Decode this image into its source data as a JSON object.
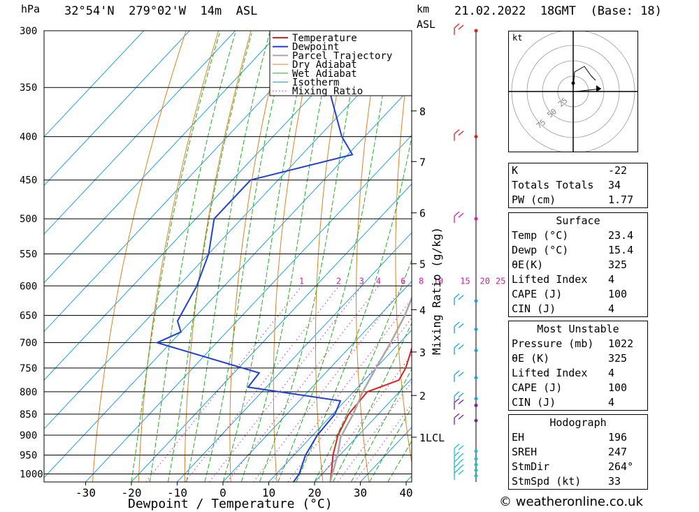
{
  "header": {
    "unit_hpa": "hPa",
    "location": "32°54'N  279°02'W  14m  ASL",
    "unit_km": "km",
    "unit_asl": "ASL",
    "datetime": "21.02.2022  18GMT  (Base: 18)"
  },
  "chart_data": {
    "type": "skew-t",
    "xlabel": "Dewpoint / Temperature (°C)",
    "ylabel_right": "Mixing Ratio (g/kg)",
    "x_ticks": [
      -30,
      -20,
      -10,
      0,
      10,
      20,
      30,
      40
    ],
    "pressure_ticks": [
      300,
      350,
      400,
      450,
      500,
      550,
      600,
      650,
      700,
      750,
      800,
      850,
      900,
      950,
      1000
    ],
    "km_ticks": [
      {
        "label": "8",
        "p": 373
      },
      {
        "label": "7",
        "p": 428
      },
      {
        "label": "6",
        "p": 492
      },
      {
        "label": "5",
        "p": 565
      },
      {
        "label": "4",
        "p": 640
      },
      {
        "label": "3",
        "p": 718
      },
      {
        "label": "2",
        "p": 808
      },
      {
        "label": "1LCL",
        "p": 905
      }
    ],
    "mixing_ratio_labels": [
      "1",
      "2",
      "3",
      "4",
      "6",
      "8",
      "10",
      "15",
      "20",
      "25"
    ],
    "legend": [
      "Temperature",
      "Dewpoint",
      "Parcel Trajectory",
      "Dry Adiabat",
      "Wet Adiabat",
      "Isotherm",
      "Mixing Ratio"
    ],
    "series": [
      {
        "name": "Temperature",
        "color": "#e02020",
        "points": [
          [
            1022,
            23.4
          ],
          [
            1000,
            22
          ],
          [
            950,
            18.5
          ],
          [
            900,
            15.5
          ],
          [
            850,
            13.5
          ],
          [
            800,
            13
          ],
          [
            775,
            17.5
          ],
          [
            750,
            16.5
          ],
          [
            700,
            13
          ],
          [
            660,
            13
          ],
          [
            600,
            10
          ],
          [
            550,
            6
          ],
          [
            500,
            1
          ],
          [
            450,
            -6
          ],
          [
            400,
            -15
          ],
          [
            350,
            -26
          ],
          [
            300,
            -37
          ]
        ]
      },
      {
        "name": "Dewpoint",
        "color": "#2040d0",
        "points": [
          [
            1022,
            15.4
          ],
          [
            1000,
            15
          ],
          [
            950,
            12.5
          ],
          [
            900,
            11
          ],
          [
            850,
            10.5
          ],
          [
            820,
            9
          ],
          [
            790,
            -14
          ],
          [
            760,
            -14.5
          ],
          [
            700,
            -43
          ],
          [
            680,
            -40
          ],
          [
            660,
            -43
          ],
          [
            600,
            -46
          ],
          [
            550,
            -50
          ],
          [
            500,
            -56
          ],
          [
            450,
            -56
          ],
          [
            420,
            -39
          ],
          [
            400,
            -45
          ],
          [
            350,
            -58
          ],
          [
            300,
            -58
          ]
        ]
      },
      {
        "name": "Parcel Trajectory",
        "color": "#a8a8a8",
        "points": [
          [
            1022,
            23.4
          ],
          [
            950,
            19.5
          ],
          [
            905,
            16.5
          ],
          [
            850,
            14.5
          ],
          [
            800,
            12
          ],
          [
            750,
            10
          ],
          [
            700,
            8
          ],
          [
            650,
            5.5
          ],
          [
            600,
            2
          ],
          [
            550,
            -3
          ],
          [
            500,
            -8.5
          ],
          [
            450,
            -16
          ],
          [
            400,
            -24
          ],
          [
            350,
            -34
          ],
          [
            310,
            -45
          ]
        ]
      }
    ],
    "wind_barbs_p": [
      300,
      400,
      500,
      625,
      675,
      715,
      770,
      815,
      830,
      865,
      940,
      960,
      975,
      990,
      1005
    ]
  },
  "hodograph": {
    "unit": "kt",
    "ring_labels": [
      "25",
      "50",
      "75"
    ]
  },
  "indices": {
    "k": {
      "label": "K",
      "value": "-22"
    },
    "tt": {
      "label": "Totals Totals",
      "value": "34"
    },
    "pw": {
      "label": "PW (cm)",
      "value": "1.77"
    }
  },
  "surface": {
    "title": "Surface",
    "temp": {
      "label": "Temp (°C)",
      "value": "23.4"
    },
    "dewp": {
      "label": "Dewp (°C)",
      "value": "15.4"
    },
    "thetae": {
      "label": "θE(K)",
      "value": "325"
    },
    "li": {
      "label": "Lifted Index",
      "value": "4"
    },
    "cape": {
      "label": "CAPE (J)",
      "value": "100"
    },
    "cin": {
      "label": "CIN (J)",
      "value": "4"
    }
  },
  "most_unstable": {
    "title": "Most Unstable",
    "pressure": {
      "label": "Pressure (mb)",
      "value": "1022"
    },
    "thetae": {
      "label": "θE (K)",
      "value": "325"
    },
    "li": {
      "label": "Lifted Index",
      "value": "4"
    },
    "cape": {
      "label": "CAPE (J)",
      "value": "100"
    },
    "cin": {
      "label": "CIN (J)",
      "value": "4"
    }
  },
  "hodo_table": {
    "title": "Hodograph",
    "eh": {
      "label": "EH",
      "value": "196"
    },
    "sreh": {
      "label": "SREH",
      "value": "247"
    },
    "stmdir": {
      "label": "StmDir",
      "value": "264°"
    },
    "stmspd": {
      "label": "StmSpd (kt)",
      "value": "33"
    }
  },
  "footer": "© weatheronline.co.uk",
  "colors": {
    "temperature": "#e02020",
    "dewpoint": "#2040d0",
    "parcel": "#a8a8a8",
    "dry": "#e08020",
    "wet": "#20b020",
    "isotherm": "#20a0e0",
    "mixing": "#d020a0"
  }
}
